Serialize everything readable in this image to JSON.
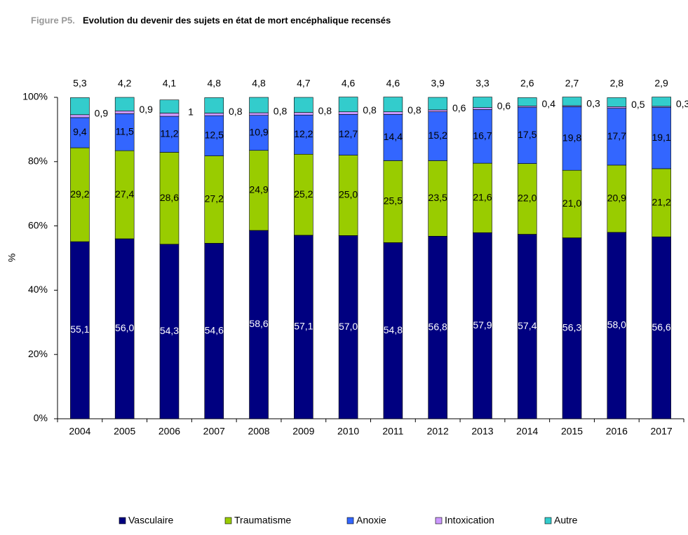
{
  "chart_data": {
    "type": "bar",
    "stacked": true,
    "figure_label": "Figure P5.",
    "title": "Evolution du devenir des sujets en état de mort encéphalique recensés",
    "ylabel": "%",
    "categories": [
      "2004",
      "2005",
      "2006",
      "2007",
      "2008",
      "2009",
      "2010",
      "2011",
      "2012",
      "2013",
      "2014",
      "2015",
      "2016",
      "2017"
    ],
    "ylim": [
      0,
      100
    ],
    "yticks": [
      {
        "value": 0,
        "label": "0%"
      },
      {
        "value": 20,
        "label": "20%"
      },
      {
        "value": 40,
        "label": "40%"
      },
      {
        "value": 60,
        "label": "60%"
      },
      {
        "value": 80,
        "label": "80%"
      },
      {
        "value": 100,
        "label": "100%"
      }
    ],
    "legend": "bottom",
    "series": [
      {
        "name": "Vasculaire",
        "color": "#000080",
        "values": [
          55.1,
          56.0,
          54.3,
          54.6,
          58.6,
          57.1,
          57.0,
          54.8,
          56.8,
          57.9,
          57.4,
          56.3,
          58.0,
          56.6
        ],
        "value_labels": [
          "55,1",
          "56,0",
          "54,3",
          "54,6",
          "58,6",
          "57,1",
          "57,0",
          "54,8",
          "56,8",
          "57,9",
          "57,4",
          "56,3",
          "58,0",
          "56,6"
        ]
      },
      {
        "name": "Traumatisme",
        "color": "#99cc00",
        "values": [
          29.2,
          27.4,
          28.6,
          27.2,
          24.9,
          25.2,
          25.0,
          25.5,
          23.5,
          21.6,
          22.0,
          21.0,
          20.9,
          21.2
        ],
        "value_labels": [
          "29,2",
          "27,4",
          "28,6",
          "27,2",
          "24,9",
          "25,2",
          "25,0",
          "25,5",
          "23,5",
          "21,6",
          "22,0",
          "21,0",
          "20,9",
          "21,2"
        ]
      },
      {
        "name": "Anoxie",
        "color": "#3366ff",
        "values": [
          9.4,
          11.5,
          11.2,
          12.5,
          10.9,
          12.2,
          12.7,
          14.4,
          15.2,
          16.7,
          17.5,
          19.8,
          17.7,
          19.1
        ],
        "value_labels": [
          "9,4",
          "11,5",
          "11,2",
          "12,5",
          "10,9",
          "12,2",
          "12,7",
          "14,4",
          "15,2",
          "16,7",
          "17,5",
          "19,8",
          "17,7",
          "19,1"
        ]
      },
      {
        "name": "Intoxication",
        "color": "#cc99ff",
        "values": [
          0.9,
          0.9,
          1,
          0.8,
          0.8,
          0.8,
          0.8,
          0.8,
          0.6,
          0.6,
          0.4,
          0.3,
          0.5,
          0.3
        ],
        "value_labels": [
          "0,9",
          "0,9",
          "1",
          "0,8",
          "0,8",
          "0,8",
          "0,8",
          "0,8",
          "0,6",
          "0,6",
          "0,4",
          "0,3",
          "0,5",
          "0,3"
        ]
      },
      {
        "name": "Autre",
        "color": "#33cccc",
        "values": [
          5.3,
          4.2,
          4.1,
          4.8,
          4.8,
          4.7,
          4.6,
          4.6,
          3.9,
          3.3,
          2.6,
          2.7,
          2.8,
          2.9
        ],
        "value_labels": [
          "5,3",
          "4,2",
          "4,1",
          "4,8",
          "4,8",
          "4,7",
          "4,6",
          "4,6",
          "3,9",
          "3,3",
          "2,6",
          "2,7",
          "2,8",
          "2,9"
        ]
      }
    ]
  }
}
